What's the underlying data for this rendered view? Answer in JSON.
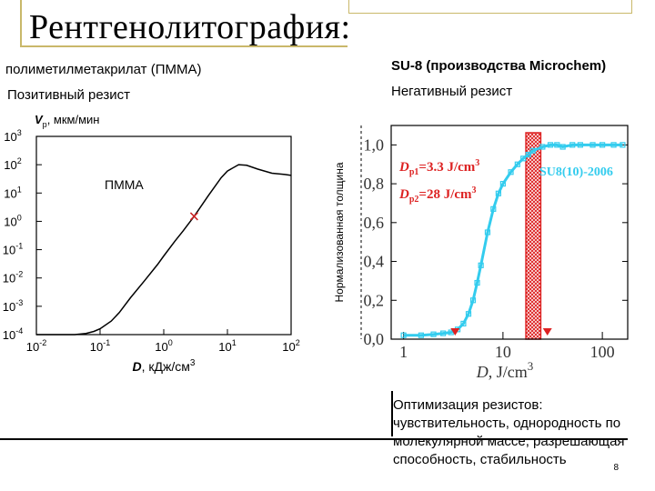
{
  "title": "Рентгенолитография:",
  "left_header": "полиметилметакрилат (ПММА)",
  "left_sub": "Позитивный резист",
  "right_header": "SU-8  (производства Microchem)",
  "right_sub": "Негативный резист",
  "summary": "Оптимизация резистов: чувствительность, однородность по молекулярной массе, разрешающая способность, стабильность",
  "page_number": "8",
  "colors": {
    "accent": "#c9b86a",
    "curve_right": "#33ccee",
    "band": "#dd2222"
  },
  "chart_data": [
    {
      "type": "line",
      "ylabel_main": "V",
      "ylabel_sub": "p",
      "ylabel_unit": ", мкм/мин",
      "xlabel_main": "D",
      "xlabel_unit": ", кДж/см",
      "xlabel_exp": "3",
      "annotation": "ПММА",
      "log_x": true,
      "log_y": true,
      "xlim": [
        0.01,
        100
      ],
      "ylim": [
        0.0001,
        1000
      ],
      "x_ticks": [
        {
          "b": "10",
          "e": "-2",
          "v": 0.01
        },
        {
          "b": "10",
          "e": "-1",
          "v": 0.1
        },
        {
          "b": "10",
          "e": "0",
          "v": 1
        },
        {
          "b": "10",
          "e": "1",
          "v": 10
        },
        {
          "b": "10",
          "e": "2",
          "v": 100
        }
      ],
      "y_ticks": [
        {
          "b": "10",
          "e": "-4",
          "v": 0.0001
        },
        {
          "b": "10",
          "e": "-3",
          "v": 0.001
        },
        {
          "b": "10",
          "e": "-2",
          "v": 0.01
        },
        {
          "b": "10",
          "e": "-1",
          "v": 0.1
        },
        {
          "b": "10",
          "e": "0",
          "v": 1
        },
        {
          "b": "10",
          "e": "1",
          "v": 10
        },
        {
          "b": "10",
          "e": "2",
          "v": 100
        },
        {
          "b": "10",
          "e": "3",
          "v": 1000
        }
      ],
      "series": [
        {
          "x": [
            0.01,
            0.02,
            0.04,
            0.06,
            0.08,
            0.1,
            0.15,
            0.2,
            0.3,
            0.5,
            0.8,
            1.0,
            1.5,
            2.0,
            3.0,
            5.0,
            8.0,
            10,
            15,
            20,
            30,
            50,
            80,
            100
          ],
          "y": [
            0.0001,
            0.0001,
            0.0001,
            0.00011,
            0.00013,
            0.00016,
            0.0003,
            0.0006,
            0.002,
            0.008,
            0.03,
            0.06,
            0.2,
            0.45,
            1.5,
            8,
            35,
            60,
            100,
            95,
            70,
            50,
            45,
            42
          ]
        }
      ],
      "marker": {
        "x": 3.0,
        "y": 1.5
      }
    },
    {
      "type": "line",
      "ylabel": "Нормализованная толщина",
      "xlabel_main": "D",
      "xlabel_unit": ", J/cm",
      "xlabel_exp": "3",
      "log_x": true,
      "xlim": [
        0.75,
        180
      ],
      "ylim": [
        0,
        1.1
      ],
      "x_ticks": [
        {
          "label": "1",
          "v": 1
        },
        {
          "label": "10",
          "v": 10
        },
        {
          "label": "100",
          "v": 100
        }
      ],
      "y_ticks": [
        {
          "label": "0,0",
          "v": 0.0
        },
        {
          "label": "0,2",
          "v": 0.2
        },
        {
          "label": "0,4",
          "v": 0.4
        },
        {
          "label": "0,6",
          "v": 0.6
        },
        {
          "label": "0,8",
          "v": 0.8
        },
        {
          "label": "1,0",
          "v": 1.0
        }
      ],
      "series_name": "SU8(10)-2006",
      "series": [
        {
          "x": [
            1.0,
            1.5,
            2.0,
            2.5,
            3.0,
            3.5,
            4.0,
            4.5,
            5.0,
            5.5,
            6.0,
            7.0,
            8.0,
            9.0,
            10,
            12,
            14,
            16,
            18,
            20,
            25,
            30,
            35,
            40,
            50,
            60,
            80,
            100,
            130,
            160
          ],
          "y": [
            0.02,
            0.02,
            0.025,
            0.03,
            0.035,
            0.05,
            0.08,
            0.13,
            0.2,
            0.29,
            0.38,
            0.55,
            0.67,
            0.75,
            0.8,
            0.86,
            0.9,
            0.93,
            0.95,
            0.97,
            0.99,
            1.0,
            1.0,
            0.99,
            1.0,
            1.0,
            1.0,
            1.0,
            1.0,
            1.0
          ]
        }
      ],
      "annotations": [
        {
          "sym": "D",
          "sub": "p1",
          "val": "=3.3 J/cm",
          "exp": "3"
        },
        {
          "sym": "D",
          "sub": "p2",
          "val": "=28 J/cm",
          "exp": "3"
        }
      ],
      "markers_x": [
        3.3,
        28
      ],
      "band": [
        17,
        24
      ]
    }
  ]
}
